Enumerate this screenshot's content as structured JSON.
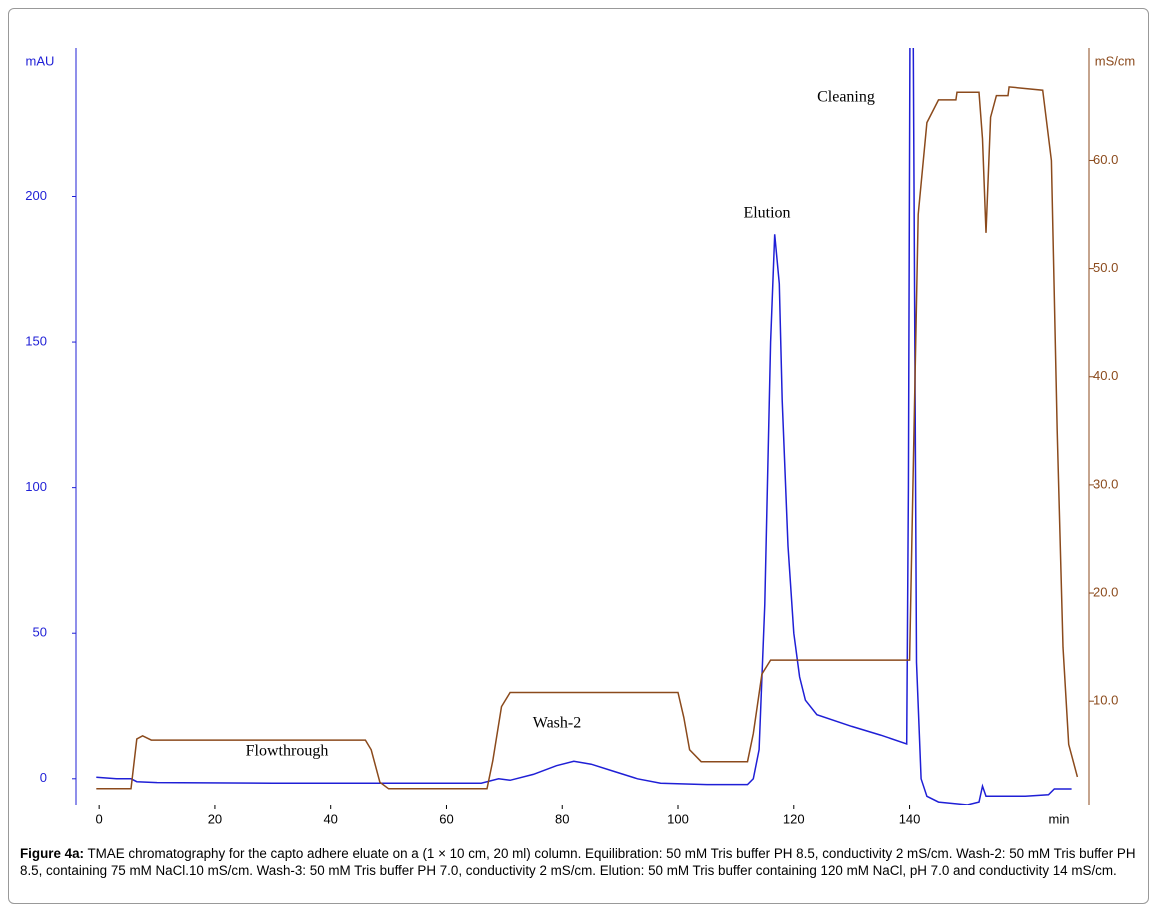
{
  "chart_data": {
    "type": "line",
    "y_label": "mAU",
    "y2_label": "mS/cm",
    "x_label": "min",
    "annotations": [
      "Cleaning",
      "Elution",
      "Wash-2",
      "Flowthrough"
    ],
    "xlim": [
      -4,
      171
    ],
    "xticks": [
      0,
      20,
      40,
      60,
      80,
      100,
      120,
      140
    ],
    "ylim": [
      -9,
      251
    ],
    "yticks": [
      0,
      50,
      100,
      150,
      200
    ],
    "y2lim": [
      0.4,
      70.4
    ],
    "y2ticks": [
      {
        "value": 10,
        "label": "10.0"
      },
      {
        "value": 20,
        "label": "20.0"
      },
      {
        "value": 30,
        "label": "30.0"
      },
      {
        "value": 40,
        "label": "40.0"
      },
      {
        "value": 50,
        "label": "50.0"
      },
      {
        "value": 60,
        "label": "60.0"
      }
    ],
    "series": [
      {
        "color": "#1f1fd6",
        "x": [
          -0.5,
          3,
          5.5,
          6.5,
          10,
          30,
          50,
          66,
          69,
          71,
          75,
          79,
          82,
          85,
          89,
          93,
          97,
          105,
          112,
          113,
          114,
          115,
          116,
          116.7,
          117.5,
          118,
          119,
          120,
          121,
          122,
          124,
          130,
          135,
          139.5,
          139.8,
          140.1,
          140.6,
          141.2,
          142,
          143,
          145,
          150,
          152,
          152.6,
          153.2,
          155,
          160,
          164,
          165,
          168
        ],
        "values": [
          0.5,
          0,
          0,
          -1,
          -1.3,
          -1.5,
          -1.5,
          -1.5,
          0,
          -0.5,
          1.5,
          4.5,
          6,
          5,
          2.5,
          0,
          -1.5,
          -2,
          -2,
          0,
          10,
          60,
          150,
          187,
          170,
          130,
          80,
          50,
          35,
          27,
          22,
          18,
          15,
          12,
          100,
          270,
          270,
          40,
          0,
          -6,
          -8,
          -9,
          -8,
          -2.5,
          -6,
          -6,
          -6,
          -5.5,
          -3.5,
          -3.5
        ]
      },
      {
        "color": "#8b4a1c",
        "axis": "y2",
        "x": [
          -0.5,
          5.5,
          6.5,
          7.5,
          9,
          46,
          47,
          48.5,
          50,
          67,
          68,
          69.5,
          71,
          100,
          101,
          102,
          104,
          112,
          113,
          114.5,
          116,
          140,
          140.4,
          141.5,
          143,
          145,
          148,
          148.2,
          152,
          152.6,
          153.2,
          154,
          155,
          157,
          157.2,
          163,
          164.5,
          165.5,
          166.5,
          167.5,
          169
        ],
        "values": [
          1.9,
          1.9,
          6.5,
          6.8,
          6.4,
          6.4,
          5.5,
          2.5,
          1.9,
          1.9,
          4.5,
          9.5,
          10.8,
          10.8,
          8.5,
          5.5,
          4.4,
          4.4,
          7,
          12.5,
          13.8,
          13.8,
          25,
          55,
          63.5,
          65.6,
          65.6,
          66.3,
          66.3,
          62,
          53.3,
          64,
          66,
          66,
          66.8,
          66.5,
          60,
          35,
          15,
          6,
          3
        ]
      }
    ]
  }
}
